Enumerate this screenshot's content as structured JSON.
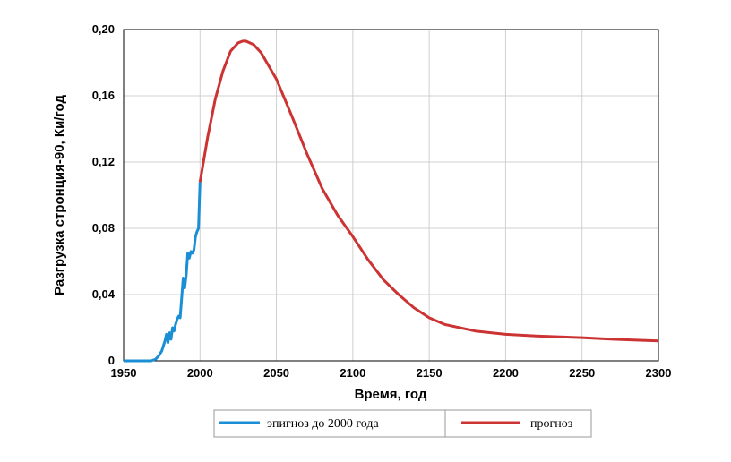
{
  "chart_data": {
    "type": "line",
    "xlabel": "Время, год",
    "ylabel": "Разгрузка стронция-90, Ки/год",
    "xlim": [
      1950,
      2300
    ],
    "ylim": [
      0,
      0.2
    ],
    "x_ticks": [
      "1950",
      "2000",
      "2050",
      "2100",
      "2150",
      "2200",
      "2250",
      "2300"
    ],
    "y_ticks": [
      "0",
      "0,04",
      "0,08",
      "0,12",
      "0,16",
      "0,20"
    ],
    "grid": true,
    "legend_position": "bottom",
    "series": [
      {
        "name": "эпигноз до 2000 года",
        "color": "#1a8fd6",
        "x": [
          1950,
          1960,
          1968,
          1971,
          1973,
          1975,
          1977,
          1978,
          1979,
          1980,
          1981,
          1982,
          1983,
          1984,
          1985,
          1986,
          1987,
          1988,
          1989,
          1990,
          1991,
          1992,
          1993,
          1994,
          1995,
          1996,
          1997,
          1998,
          1999,
          2000
        ],
        "values": [
          0,
          0,
          0,
          0.001,
          0.003,
          0.006,
          0.012,
          0.016,
          0.011,
          0.017,
          0.013,
          0.02,
          0.018,
          0.022,
          0.025,
          0.027,
          0.026,
          0.038,
          0.05,
          0.044,
          0.052,
          0.065,
          0.062,
          0.066,
          0.065,
          0.067,
          0.075,
          0.078,
          0.08,
          0.108
        ]
      },
      {
        "name": "прогноз",
        "color": "#cc3333",
        "x": [
          2000,
          2005,
          2010,
          2015,
          2020,
          2025,
          2028,
          2030,
          2035,
          2040,
          2050,
          2060,
          2070,
          2080,
          2090,
          2100,
          2110,
          2120,
          2130,
          2140,
          2150,
          2160,
          2170,
          2180,
          2200,
          2220,
          2250,
          2270,
          2300
        ],
        "values": [
          0.108,
          0.135,
          0.158,
          0.175,
          0.187,
          0.192,
          0.193,
          0.193,
          0.191,
          0.186,
          0.17,
          0.148,
          0.125,
          0.104,
          0.088,
          0.075,
          0.061,
          0.049,
          0.04,
          0.032,
          0.026,
          0.022,
          0.02,
          0.018,
          0.016,
          0.015,
          0.014,
          0.013,
          0.012
        ]
      }
    ]
  }
}
